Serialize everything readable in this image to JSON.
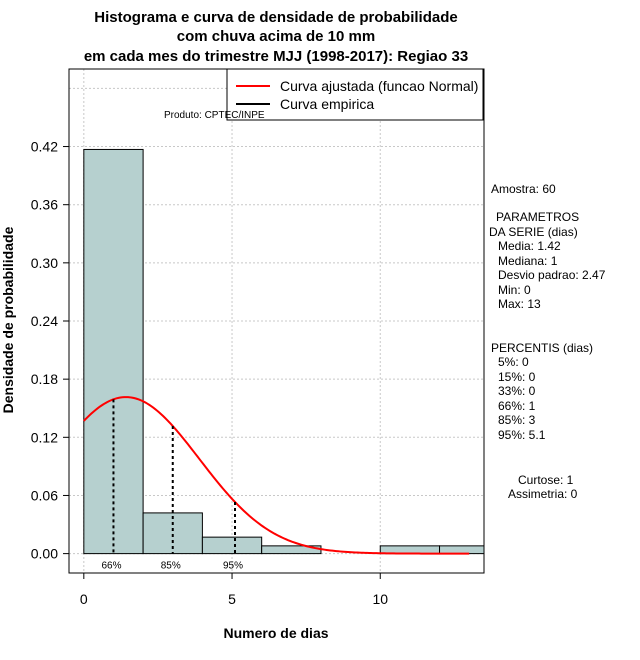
{
  "chart_data": {
    "type": "bar",
    "title_lines": [
      "Histograma e curva de densidade de probabilidade",
      "com chuva acima de 10 mm",
      "em cada mes do trimestre MJJ (1998-2017): Regiao 33"
    ],
    "xlabel": "Numero de dias",
    "ylabel": "Densidade de probabilidade",
    "xlim": [
      -0.5,
      13.5
    ],
    "ylim": [
      -0.02,
      0.5
    ],
    "x_ticks": [
      0,
      5,
      10
    ],
    "y_ticks": [
      0.0,
      0.06,
      0.12,
      0.18,
      0.24,
      0.3,
      0.36,
      0.42
    ],
    "y_tick_labels": [
      "0.00",
      "0.06",
      "0.12",
      "0.18",
      "0.24",
      "0.30",
      "0.36",
      "0.42"
    ],
    "grid": true,
    "bin_width": 2,
    "bins": [
      {
        "start": 0,
        "end": 2,
        "density": 0.417
      },
      {
        "start": 2,
        "end": 4,
        "density": 0.042
      },
      {
        "start": 4,
        "end": 6,
        "density": 0.017
      },
      {
        "start": 6,
        "end": 8,
        "density": 0.008
      },
      {
        "start": 8,
        "end": 10,
        "density": 0.0
      },
      {
        "start": 10,
        "end": 12,
        "density": 0.008
      },
      {
        "start": 12,
        "end": 14,
        "density": 0.008
      }
    ],
    "normal_fit": {
      "mean": 1.42,
      "sd": 2.47,
      "x_range": [
        0,
        13
      ]
    },
    "percentile_lines": [
      {
        "x": 1.0,
        "label": "66%"
      },
      {
        "x": 3.0,
        "label": "85%"
      },
      {
        "x": 5.1,
        "label": "95%"
      }
    ],
    "legend": {
      "position": "top-right",
      "items": [
        {
          "label": "Curva ajustada (funcao Normal)",
          "color": "#ff0000"
        },
        {
          "label": "Curva empirica",
          "color": "#000000"
        }
      ]
    },
    "bar_color": "#b6d0cf",
    "product_label": "Produto: CPTEC/INPE"
  },
  "stats_panel": {
    "amostra": "Amostra: 60",
    "params_header_1": "PARAMETROS",
    "params_header_2": "DA SERIE (dias)",
    "media": "Media: 1.42",
    "mediana": "Mediana: 1",
    "desvio": "Desvio padrao: 2.47",
    "min": "Min: 0",
    "max": "Max: 13",
    "percentis_header": "PERCENTIS (dias)",
    "p5": "5%: 0",
    "p15": "15%: 0",
    "p33": "33%: 0",
    "p66": "66%: 1",
    "p85": "85%: 3",
    "p95": "95%: 5.1",
    "curtose": "Curtose: 1",
    "assimetria": "Assimetria: 0"
  }
}
